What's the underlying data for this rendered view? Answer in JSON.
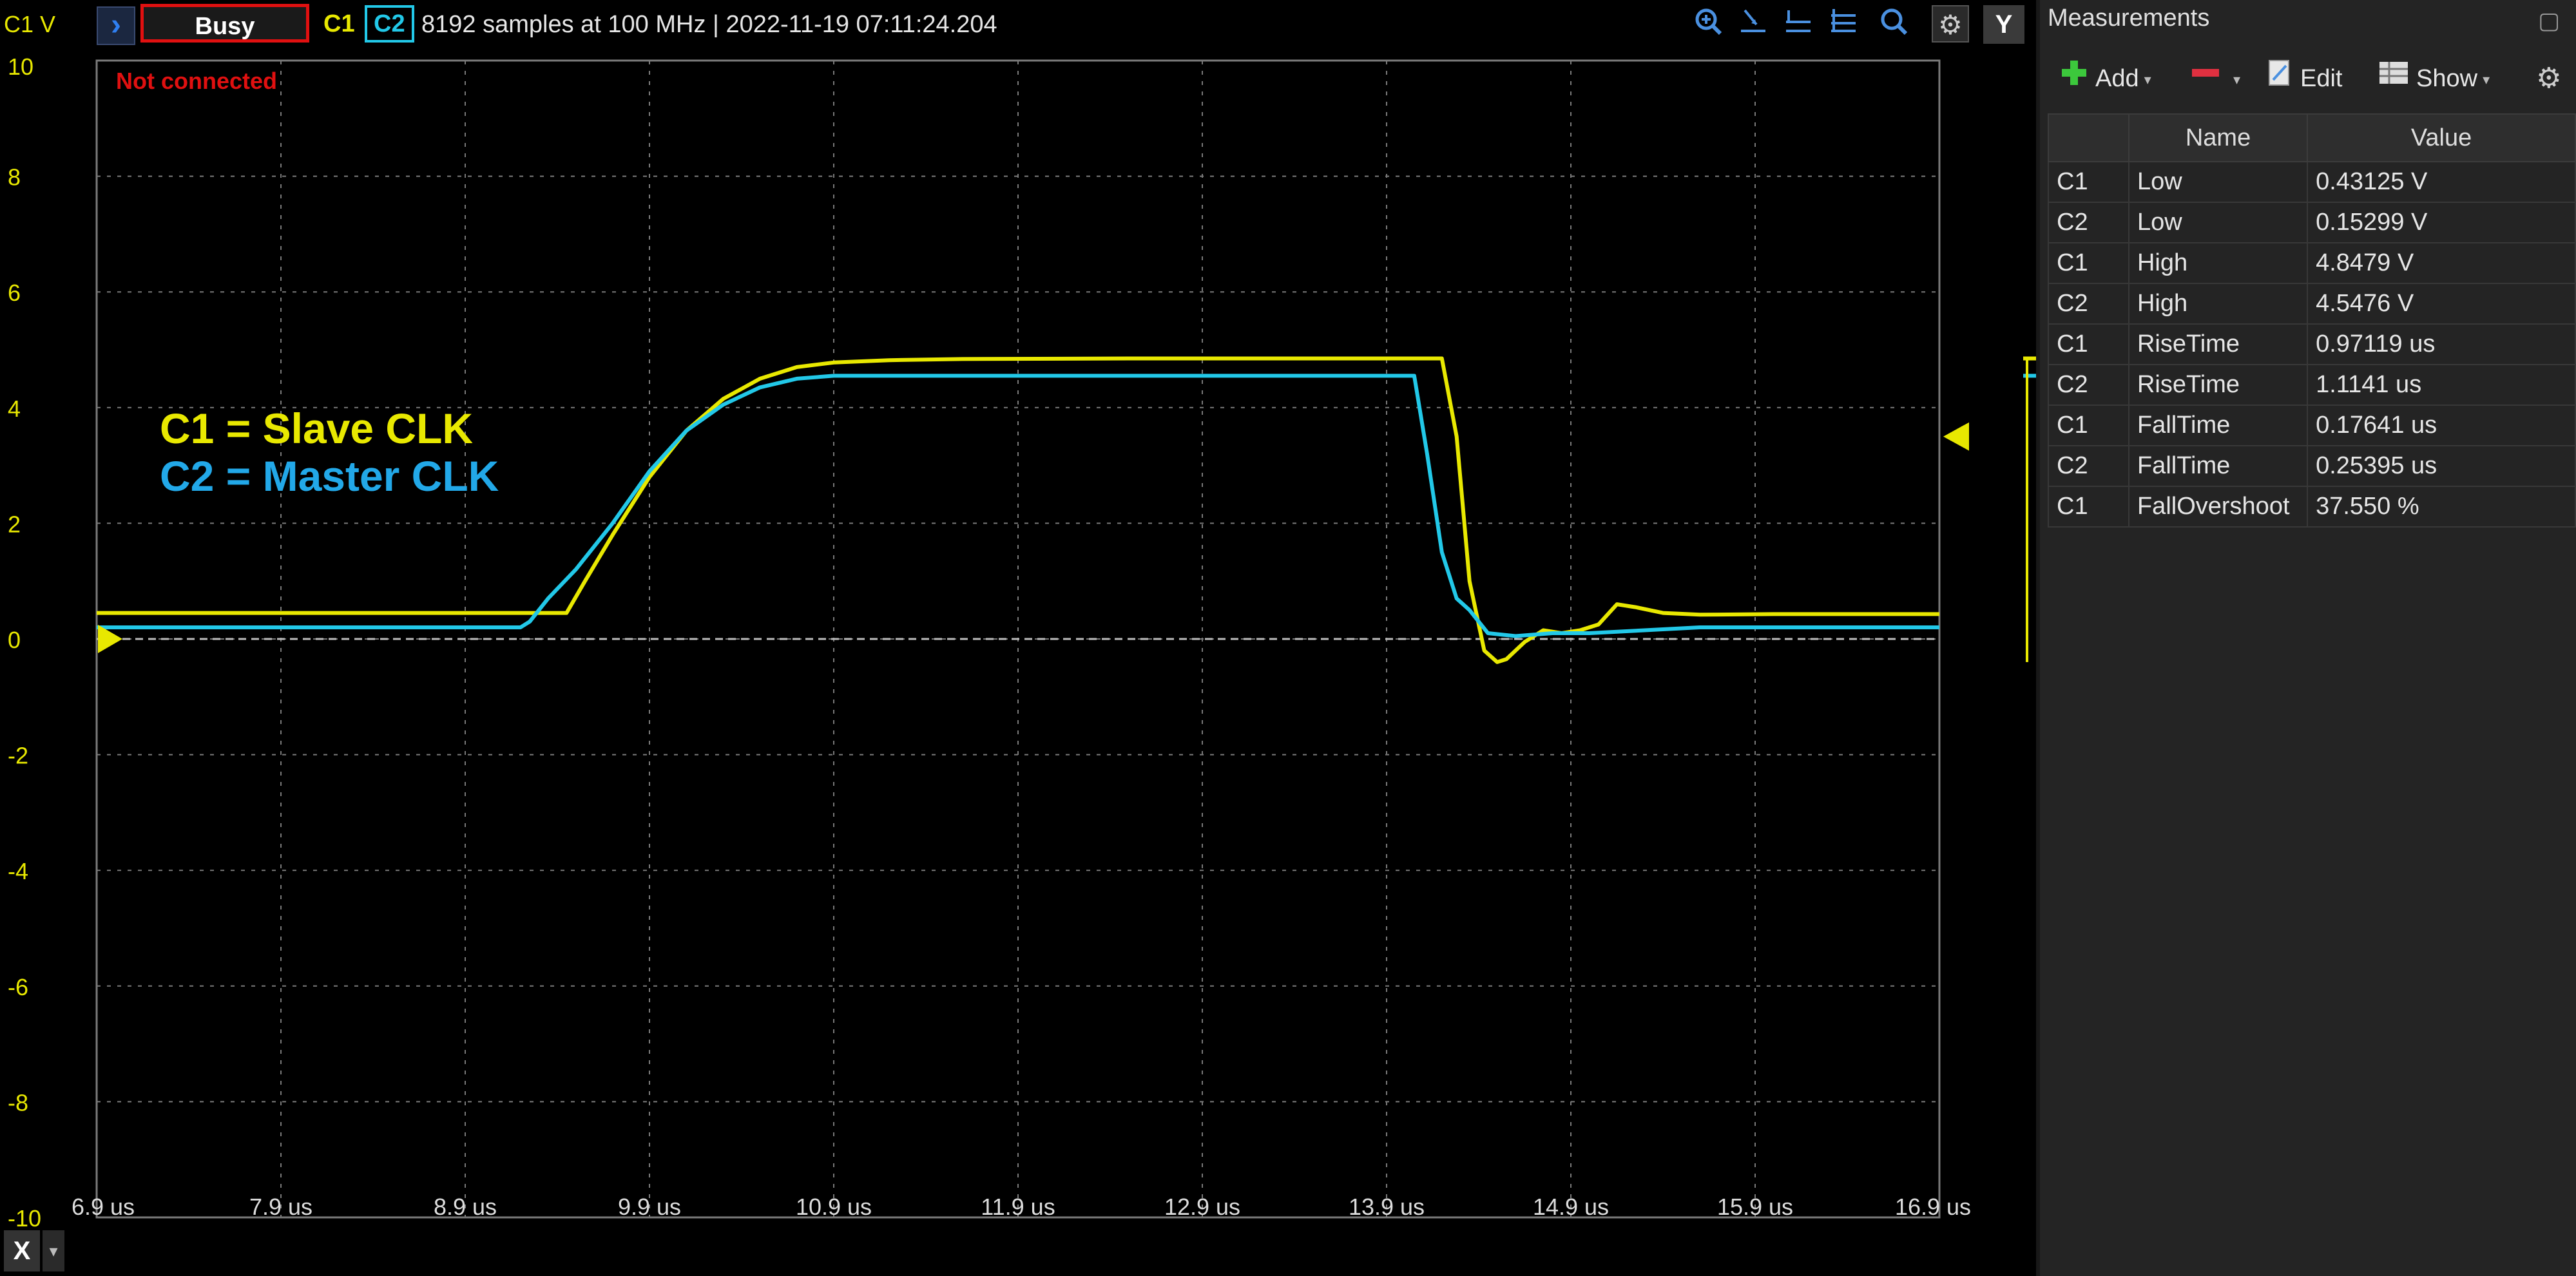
{
  "scope": {
    "y_unit_label": "C1 V",
    "status_button": "Busy",
    "channel_buttons": [
      "C1",
      "C2"
    ],
    "acquisition_info": "8192 samples at 100 MHz | 2022-11-19 07:11:24.204",
    "y_button": "Y",
    "x_button": "X",
    "connection_status": "Not connected",
    "annotation_c1": "C1 = Slave CLK",
    "annotation_c2": "C2 = Master CLK",
    "toolbar_icons": [
      "zoom-in-icon",
      "cursor-a-icon",
      "cursor-b-icon",
      "cursor-c-icon",
      "zoom-icon",
      "gear-icon"
    ],
    "colors": {
      "c1": "#e8e800",
      "c2": "#22c8e8",
      "grid": "#7a7a7a",
      "background": "#000000",
      "alert": "#e01010"
    }
  },
  "chart_data": {
    "type": "line",
    "xlim": [
      6.9,
      16.9
    ],
    "ylim": [
      -10,
      10
    ],
    "x_ticks": [
      "6.9 us",
      "7.9 us",
      "8.9 us",
      "9.9 us",
      "10.9 us",
      "11.9 us",
      "12.9 us",
      "13.9 us",
      "14.9 us",
      "15.9 us",
      "16.9 us"
    ],
    "y_ticks": [
      "10",
      "8",
      "6",
      "4",
      "2",
      "0",
      "-2",
      "-4",
      "-6",
      "-8",
      "-10"
    ],
    "grid": true,
    "series": [
      {
        "name": "C1",
        "color": "#e8e800",
        "x": [
          6.9,
          9.2,
          9.45,
          9.55,
          9.7,
          9.9,
          10.1,
          10.3,
          10.5,
          10.7,
          10.9,
          11.2,
          11.6,
          12.5,
          13.5,
          14.1,
          14.2,
          14.28,
          14.35,
          14.43,
          14.5,
          14.55,
          14.65,
          14.75,
          14.85,
          14.95,
          15.05,
          15.15,
          15.25,
          15.4,
          15.6,
          16.0,
          16.9
        ],
        "y": [
          0.45,
          0.45,
          0.45,
          1.0,
          1.8,
          2.8,
          3.6,
          4.15,
          4.5,
          4.7,
          4.78,
          4.82,
          4.84,
          4.85,
          4.85,
          4.85,
          4.85,
          3.5,
          1.0,
          -0.2,
          -0.4,
          -0.35,
          -0.05,
          0.15,
          0.1,
          0.15,
          0.25,
          0.6,
          0.55,
          0.45,
          0.42,
          0.43,
          0.43
        ]
      },
      {
        "name": "C2",
        "color": "#22c8e8",
        "x": [
          6.9,
          9.2,
          9.25,
          9.35,
          9.5,
          9.7,
          9.9,
          10.1,
          10.3,
          10.5,
          10.7,
          10.9,
          11.3,
          12.5,
          13.5,
          13.95,
          14.05,
          14.12,
          14.2,
          14.28,
          14.35,
          14.45,
          14.6,
          14.8,
          15.0,
          15.3,
          15.6,
          16.0,
          16.9
        ],
        "y": [
          0.2,
          0.2,
          0.3,
          0.7,
          1.2,
          2.0,
          2.9,
          3.6,
          4.05,
          4.35,
          4.5,
          4.55,
          4.55,
          4.55,
          4.55,
          4.55,
          4.55,
          3.2,
          1.5,
          0.7,
          0.5,
          0.1,
          0.05,
          0.1,
          0.1,
          0.15,
          0.2,
          0.2,
          0.2
        ]
      }
    ]
  },
  "measurements": {
    "title": "Measurements",
    "toolbar": {
      "add": "Add",
      "edit": "Edit",
      "show": "Show"
    },
    "columns": [
      "Name",
      "Value"
    ],
    "rows": [
      {
        "channel": "C1",
        "name": "Low",
        "value": "0.43125 V"
      },
      {
        "channel": "C2",
        "name": "Low",
        "value": "0.15299 V"
      },
      {
        "channel": "C1",
        "name": "High",
        "value": "4.8479 V"
      },
      {
        "channel": "C2",
        "name": "High",
        "value": "4.5476 V"
      },
      {
        "channel": "C1",
        "name": "RiseTime",
        "value": "0.97119 us"
      },
      {
        "channel": "C2",
        "name": "RiseTime",
        "value": "1.1141 us"
      },
      {
        "channel": "C1",
        "name": "FallTime",
        "value": "0.17641 us"
      },
      {
        "channel": "C2",
        "name": "FallTime",
        "value": "0.25395 us"
      },
      {
        "channel": "C1",
        "name": "FallOvershoot",
        "value": "37.550 %"
      }
    ]
  }
}
